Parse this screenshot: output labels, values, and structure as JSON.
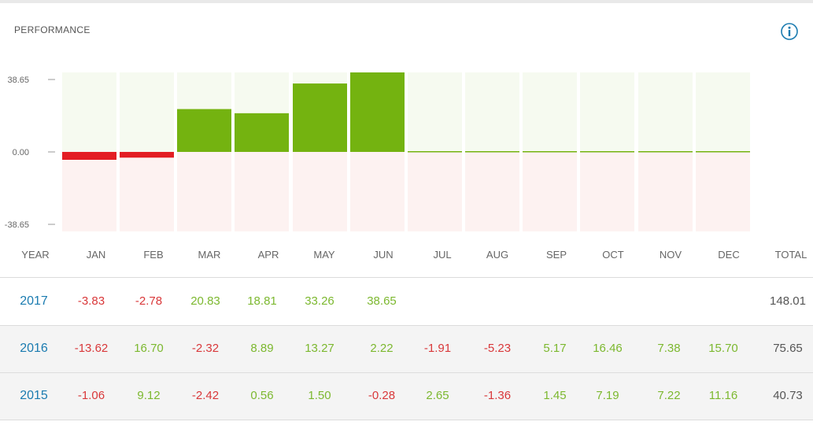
{
  "title": "PERFORMANCE",
  "info_icon": "info-icon",
  "colors": {
    "positive": "#74b310",
    "negative": "#e31e24",
    "positive_bg": "#f6faf0",
    "negative_bg": "#fdf2f1",
    "link": "#1a7bb0"
  },
  "chart_data": {
    "type": "bar",
    "categories": [
      "JAN",
      "FEB",
      "MAR",
      "APR",
      "MAY",
      "JUN",
      "JUL",
      "AUG",
      "SEP",
      "OCT",
      "NOV",
      "DEC"
    ],
    "series": [
      {
        "values": [
          -3.83,
          -2.78,
          20.83,
          18.81,
          33.26,
          38.65,
          null,
          null,
          null,
          null,
          null,
          null
        ]
      }
    ],
    "y_ticks": [
      "38.65",
      "0.00",
      "-38.65"
    ],
    "ylim": [
      -38.65,
      38.65
    ],
    "grid": false
  },
  "table": {
    "headers": [
      "YEAR",
      "JAN",
      "FEB",
      "MAR",
      "APR",
      "MAY",
      "JUN",
      "JUL",
      "AUG",
      "SEP",
      "OCT",
      "NOV",
      "DEC",
      "TOTAL"
    ],
    "rows": [
      {
        "year": "2017",
        "months": [
          "-3.83",
          "-2.78",
          "20.83",
          "18.81",
          "33.26",
          "38.65",
          "",
          "",
          "",
          "",
          "",
          ""
        ],
        "total": "148.01"
      },
      {
        "year": "2016",
        "months": [
          "-13.62",
          "16.70",
          "-2.32",
          "8.89",
          "13.27",
          "2.22",
          "-1.91",
          "-5.23",
          "5.17",
          "16.46",
          "7.38",
          "15.70"
        ],
        "total": "75.65"
      },
      {
        "year": "2015",
        "months": [
          "-1.06",
          "9.12",
          "-2.42",
          "0.56",
          "1.50",
          "-0.28",
          "2.65",
          "-1.36",
          "1.45",
          "7.19",
          "7.22",
          "11.16"
        ],
        "total": "40.73"
      }
    ]
  }
}
